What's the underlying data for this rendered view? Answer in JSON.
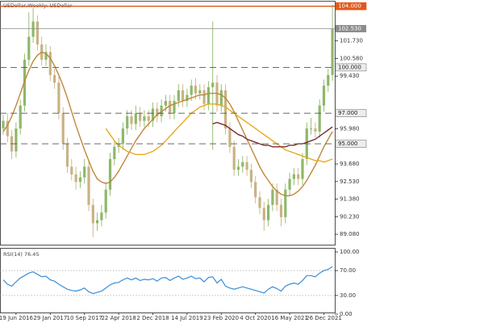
{
  "chart_data": [
    {
      "type": "candlestick",
      "title": "USDollar,Weekly: USDollar",
      "categories": [
        null,
        null,
        null,
        "19 Jun 2016",
        null,
        null,
        null,
        null,
        null,
        null,
        null,
        "29 Jan 2017",
        null,
        null,
        null,
        null,
        null,
        null,
        null,
        "10 Sep 2017",
        null,
        null,
        null,
        null,
        null,
        null,
        null,
        "22 Apr 2018",
        null,
        null,
        null,
        null,
        null,
        null,
        null,
        "2 Dec 2018",
        null,
        null,
        null,
        null,
        null,
        null,
        null,
        "14 Jul 2019",
        null,
        null,
        null,
        null,
        null,
        null,
        null,
        "23 Feb 2020",
        null,
        null,
        null,
        null,
        null,
        null,
        null,
        "4 Oct 2020",
        null,
        null,
        null,
        null,
        null,
        null,
        null,
        "16 May 2021",
        null,
        null,
        null,
        null,
        null,
        null,
        null,
        "26 Dec 2021",
        null,
        null
      ],
      "open": [
        96.0,
        96.5,
        95.5,
        94.5,
        96.0,
        97.5,
        100.5,
        102.0,
        103.0,
        101.5,
        100.5,
        101.0,
        99.5,
        99.0,
        97.0,
        95.0,
        93.5,
        93.0,
        92.5,
        92.8,
        93.5,
        91.0,
        89.8,
        90.0,
        90.5,
        92.0,
        94.0,
        94.8,
        95.0,
        96.0,
        96.8,
        96.3,
        97.0,
        96.5,
        96.8,
        96.5,
        97.3,
        96.8,
        97.5,
        97.8,
        97.0,
        97.8,
        98.5,
        97.8,
        98.2,
        98.8,
        98.3,
        98.5,
        97.6,
        98.7,
        99.0,
        97.5,
        98.5,
        96.0,
        94.8,
        93.3,
        93.5,
        93.8,
        93.3,
        92.5,
        91.5,
        90.8,
        90.0,
        91.0,
        92.0,
        91.0,
        90.2,
        92.0,
        92.7,
        93.0,
        92.7,
        94.0,
        96.0,
        96.0,
        95.8,
        97.5,
        98.8,
        99.5
      ],
      "high": [
        96.9,
        97.0,
        95.9,
        96.4,
        97.9,
        100.9,
        103.6,
        103.9,
        103.4,
        102.0,
        101.5,
        101.4,
        99.9,
        99.4,
        97.4,
        95.4,
        94.0,
        93.5,
        93.2,
        94.0,
        93.9,
        91.4,
        90.5,
        91.0,
        92.5,
        94.4,
        95.2,
        95.4,
        96.4,
        97.2,
        97.2,
        97.5,
        97.4,
        97.2,
        97.2,
        97.7,
        97.7,
        97.9,
        98.2,
        98.2,
        98.2,
        98.9,
        98.9,
        98.6,
        99.2,
        99.3,
        98.9,
        98.9,
        99.1,
        103.0,
        99.5,
        98.9,
        98.9,
        96.4,
        95.2,
        94.0,
        94.2,
        94.2,
        93.7,
        92.9,
        91.9,
        91.2,
        91.4,
        92.4,
        92.4,
        91.4,
        92.4,
        93.1,
        93.4,
        93.4,
        94.4,
        96.4,
        96.7,
        96.4,
        97.9,
        99.2,
        99.9,
        104.1
      ],
      "low": [
        95.6,
        95.1,
        94.0,
        94.1,
        95.6,
        97.1,
        100.1,
        101.6,
        101.1,
        100.1,
        100.1,
        99.1,
        98.6,
        96.6,
        94.6,
        93.1,
        92.6,
        92.0,
        92.1,
        92.4,
        90.6,
        88.9,
        89.3,
        89.6,
        90.1,
        91.6,
        93.6,
        94.4,
        94.6,
        95.6,
        95.9,
        95.9,
        96.1,
        96.1,
        96.1,
        96.1,
        96.4,
        96.4,
        97.1,
        96.6,
        96.6,
        97.4,
        97.4,
        97.4,
        97.8,
        97.9,
        97.9,
        97.2,
        97.2,
        94.6,
        97.1,
        97.1,
        95.6,
        94.4,
        92.9,
        92.9,
        93.1,
        92.9,
        92.1,
        91.1,
        90.4,
        89.3,
        89.6,
        90.6,
        90.6,
        89.6,
        89.8,
        91.6,
        92.3,
        92.3,
        92.3,
        93.6,
        95.6,
        95.4,
        95.4,
        97.1,
        98.4,
        99.1
      ],
      "close": [
        96.5,
        95.5,
        94.5,
        96.0,
        97.5,
        100.5,
        102.0,
        103.0,
        101.5,
        100.5,
        101.0,
        99.5,
        99.0,
        97.0,
        95.0,
        93.5,
        93.0,
        92.5,
        92.8,
        93.5,
        91.0,
        89.8,
        90.0,
        90.5,
        92.0,
        94.0,
        94.8,
        95.0,
        96.0,
        96.8,
        96.3,
        97.0,
        96.5,
        96.8,
        96.5,
        97.3,
        96.8,
        97.5,
        97.8,
        97.0,
        97.8,
        98.5,
        97.8,
        98.2,
        98.8,
        98.3,
        98.5,
        97.6,
        98.7,
        99.0,
        97.5,
        98.5,
        96.0,
        94.8,
        93.3,
        93.5,
        93.8,
        93.3,
        92.5,
        91.5,
        90.8,
        90.0,
        91.0,
        92.0,
        91.0,
        90.2,
        92.0,
        92.7,
        93.0,
        92.7,
        94.0,
        96.0,
        96.0,
        95.8,
        97.5,
        98.8,
        99.5,
        102.53
      ],
      "up_color": "#8db86a",
      "down_color": "#c9b283",
      "overlays": [
        {
          "color": "#c0873a",
          "values": [
            95.8,
            96.2,
            96.8,
            97.5,
            98.3,
            99.1,
            99.8,
            100.4,
            100.8,
            101.0,
            100.9,
            100.6,
            100.1,
            99.5,
            98.8,
            98.0,
            97.1,
            96.2,
            95.4,
            94.6,
            93.9,
            93.2,
            92.7,
            92.5,
            92.4,
            92.5,
            92.8,
            93.2,
            93.7,
            94.2,
            94.7,
            95.2,
            95.6,
            96.0,
            96.3,
            96.6,
            96.9,
            97.1,
            97.3,
            97.5,
            97.6,
            97.7,
            97.8,
            97.9,
            98.0,
            98.1,
            98.2,
            98.2,
            98.3,
            98.3,
            98.3,
            98.2,
            98.0,
            97.6,
            97.1,
            96.5,
            95.9,
            95.3,
            94.7,
            94.1,
            93.5,
            93.0,
            92.6,
            92.2,
            91.9,
            91.7,
            91.6,
            91.6,
            91.7,
            91.9,
            92.2,
            92.6,
            93.1,
            93.6,
            94.2,
            94.8,
            95.3,
            95.8
          ]
        },
        {
          "color": "#e8aa1c",
          "values": [
            null,
            null,
            null,
            null,
            null,
            null,
            null,
            null,
            null,
            null,
            null,
            null,
            null,
            null,
            null,
            null,
            null,
            null,
            null,
            null,
            null,
            null,
            null,
            null,
            96.0,
            95.6,
            95.2,
            94.9,
            94.7,
            94.5,
            94.4,
            94.3,
            94.3,
            94.3,
            94.4,
            94.5,
            94.7,
            94.9,
            95.2,
            95.5,
            95.8,
            96.1,
            96.4,
            96.7,
            97.0,
            97.2,
            97.4,
            97.5,
            97.6,
            97.6,
            97.6,
            97.5,
            97.4,
            97.2,
            97.0,
            96.8,
            96.6,
            96.4,
            96.2,
            96.0,
            95.8,
            95.6,
            95.4,
            95.2,
            95.0,
            94.8,
            94.6,
            94.5,
            94.4,
            94.3,
            94.2,
            94.1,
            94.0,
            93.9,
            93.9,
            93.8,
            93.9,
            94.0
          ]
        },
        {
          "color": "#7b2d2d",
          "values": [
            null,
            null,
            null,
            null,
            null,
            null,
            null,
            null,
            null,
            null,
            null,
            null,
            null,
            null,
            null,
            null,
            null,
            null,
            null,
            null,
            null,
            null,
            null,
            null,
            null,
            null,
            null,
            null,
            null,
            null,
            null,
            null,
            null,
            null,
            null,
            null,
            null,
            null,
            null,
            null,
            null,
            null,
            null,
            null,
            null,
            null,
            null,
            null,
            null,
            96.3,
            96.4,
            96.3,
            96.2,
            96.0,
            95.8,
            95.6,
            95.5,
            95.3,
            95.2,
            95.1,
            95.0,
            94.9,
            94.9,
            94.8,
            94.8,
            94.8,
            94.8,
            94.9,
            94.9,
            95.0,
            95.0,
            95.1,
            95.2,
            95.3,
            95.5,
            95.7,
            95.9,
            96.1
          ]
        }
      ],
      "ylim": [
        88.4,
        104.3
      ],
      "yticks": [
        {
          "value": 89.08,
          "label": "89.080"
        },
        {
          "value": 90.23,
          "label": "90.230"
        },
        {
          "value": 91.38,
          "label": "91.380"
        },
        {
          "value": 92.53,
          "label": "92.530"
        },
        {
          "value": 93.68,
          "label": "93.680"
        },
        {
          "value": 95.98,
          "label": "95.980"
        },
        {
          "value": 99.43,
          "label": "99.430"
        },
        {
          "value": 100.58,
          "label": "100.580"
        },
        {
          "value": 101.73,
          "label": "101.730"
        }
      ],
      "levels": [
        {
          "value": 104,
          "label": "104.000",
          "color": "#e2581c",
          "dashed": false
        },
        {
          "value": 100,
          "label": "100.000",
          "color": "#555555",
          "dashed": true
        },
        {
          "value": 97,
          "label": "97.000",
          "color": "#555555",
          "dashed": true
        },
        {
          "value": 95,
          "label": "95.000",
          "color": "#555555",
          "dashed": true
        }
      ],
      "price_line": {
        "value": 102.53,
        "label": "102.530",
        "color": "#8c8c8c"
      }
    },
    {
      "type": "line",
      "title": "RSI(14) 76.45",
      "color": "#3a8ed6",
      "values": [
        55,
        48,
        45,
        52,
        58,
        62,
        66,
        68,
        64,
        60,
        61,
        55,
        53,
        48,
        44,
        40,
        38,
        37,
        39,
        42,
        36,
        33,
        35,
        37,
        42,
        47,
        50,
        51,
        55,
        58,
        55,
        58,
        54,
        56,
        55,
        57,
        53,
        58,
        59,
        54,
        58,
        61,
        56,
        58,
        61,
        57,
        58,
        52,
        59,
        60,
        50,
        56,
        45,
        42,
        40,
        42,
        44,
        42,
        40,
        38,
        36,
        34,
        40,
        44,
        41,
        37,
        45,
        48,
        50,
        48,
        54,
        62,
        62,
        60,
        66,
        70,
        72,
        76.45
      ],
      "ylim": [
        0,
        100
      ],
      "yticks": [
        {
          "value": 0,
          "label": "0.00"
        },
        {
          "value": 30,
          "label": "30.00"
        },
        {
          "value": 70,
          "label": "70.00"
        },
        {
          "value": 100,
          "label": "100.00"
        }
      ],
      "levels": [
        30,
        70
      ]
    }
  ]
}
